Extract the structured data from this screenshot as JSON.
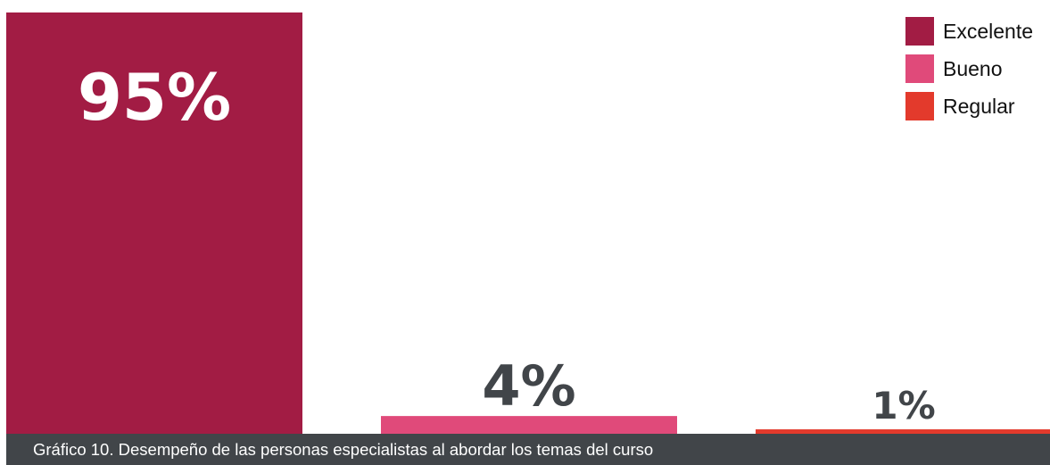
{
  "chart_data": {
    "type": "bar",
    "categories": [
      "Excelente",
      "Bueno",
      "Regular"
    ],
    "values": [
      95,
      4,
      1
    ],
    "value_labels": [
      "95%",
      "4%",
      "1%"
    ],
    "unit": "%",
    "ylim": [
      0,
      100
    ],
    "grid": false,
    "legend_position": "top-right",
    "colors": [
      "#a21c44",
      "#e04a7a",
      "#e33a2c"
    ],
    "label_colors": [
      "#ffffff",
      "#414549",
      "#414549"
    ],
    "caption": "Gráfico 10. Desempeño de las personas especialistas al abordar los temas del curso"
  }
}
